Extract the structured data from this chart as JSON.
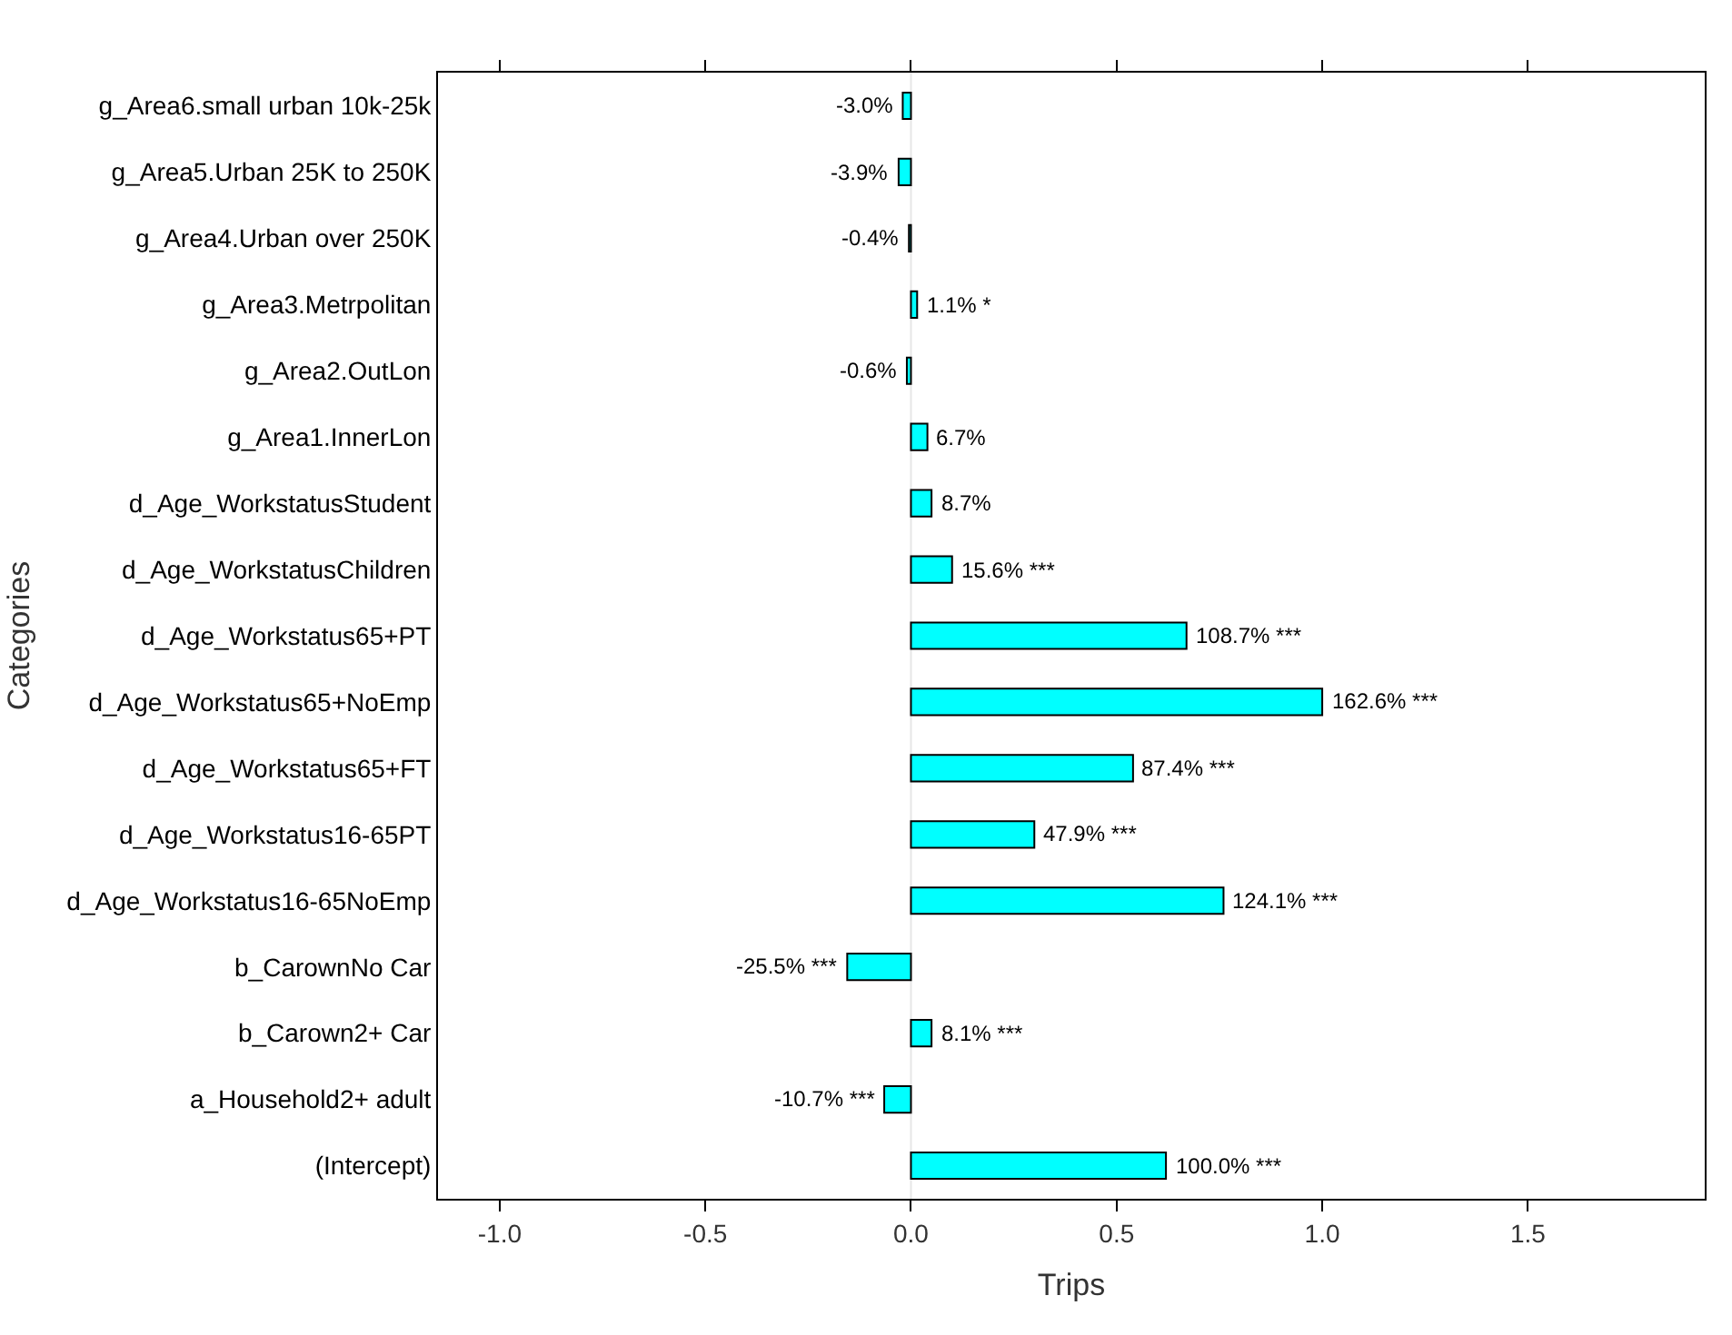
{
  "chart_data": {
    "type": "bar",
    "orientation": "horizontal",
    "xlabel": "Trips",
    "ylabel": "Categories",
    "categories": [
      "g_Area6.small urban 10k-25k",
      "g_Area5.Urban 25K to 250K",
      "g_Area4.Urban over 250K",
      "g_Area3.Metrpolitan",
      "g_Area2.OutLon",
      "g_Area1.InnerLon",
      "d_Age_WorkstatusStudent",
      "d_Age_WorkstatusChildren",
      "d_Age_Workstatus65+PT",
      "d_Age_Workstatus65+NoEmp",
      "d_Age_Workstatus65+FT",
      "d_Age_Workstatus16-65PT",
      "d_Age_Workstatus16-65NoEmp",
      "b_CarownNo Car",
      "b_Carown2+ Car",
      "a_Household2+ adult",
      "(Intercept)"
    ],
    "values": [
      -0.02,
      -0.03,
      -0.005,
      0.015,
      -0.01,
      0.04,
      0.05,
      0.1,
      0.67,
      1.0,
      0.54,
      0.3,
      0.76,
      -0.155,
      0.05,
      -0.065,
      0.62
    ],
    "annotations": [
      {
        "text": "-3.0%",
        "x": -0.02,
        "y": "g_Area6.small urban 10k-25k"
      },
      {
        "text": "-3.9%",
        "x": -0.03,
        "y": "g_Area5.Urban 25K to 250K"
      },
      {
        "text": "-0.4%",
        "x": -0.005,
        "y": "g_Area4.Urban over 250K"
      },
      {
        "text": "1.1% *",
        "x": 0.015,
        "y": "g_Area3.Metrpolitan"
      },
      {
        "text": "-0.6%",
        "x": -0.01,
        "y": "g_Area2.OutLon"
      },
      {
        "text": "6.7%",
        "x": 0.04,
        "y": "g_Area1.InnerLon"
      },
      {
        "text": "8.7%",
        "x": 0.05,
        "y": "d_Age_WorkstatusStudent"
      },
      {
        "text": "15.6% ***",
        "x": 0.1,
        "y": "d_Age_WorkstatusChildren"
      },
      {
        "text": "108.7% ***",
        "x": 0.67,
        "y": "d_Age_Workstatus65+PT"
      },
      {
        "text": "162.6% ***",
        "x": 1.0,
        "y": "d_Age_Workstatus65+NoEmp"
      },
      {
        "text": "87.4% ***",
        "x": 0.54,
        "y": "d_Age_Workstatus65+FT"
      },
      {
        "text": "47.9% ***",
        "x": 0.3,
        "y": "d_Age_Workstatus16-65PT"
      },
      {
        "text": "124.1% ***",
        "x": 0.76,
        "y": "d_Age_Workstatus16-65NoEmp"
      },
      {
        "text": "-25.5% ***",
        "x": -0.155,
        "y": "b_CarownNo Car"
      },
      {
        "text": "8.1% ***",
        "x": 0.05,
        "y": "b_Carown2+ Car"
      },
      {
        "text": "-10.7% ***",
        "x": -0.065,
        "y": "a_Household2+ adult"
      },
      {
        "text": "100.0% ***",
        "x": 0.62,
        "y": "(Intercept)"
      }
    ],
    "color": "#00ffff",
    "xlim": [
      -1.15,
      1.93
    ],
    "xticks": [
      {
        "value": -1,
        "label": "-1.0"
      },
      -0.5,
      {
        "value": 0,
        "label": "0.0"
      },
      0.5,
      {
        "value": 1,
        "label": "1.0"
      },
      1.5
    ],
    "ref_lines": [
      {
        "axis": "x",
        "value": 0,
        "color": "#e6e6e6"
      }
    ],
    "grid": false,
    "legend": false
  }
}
